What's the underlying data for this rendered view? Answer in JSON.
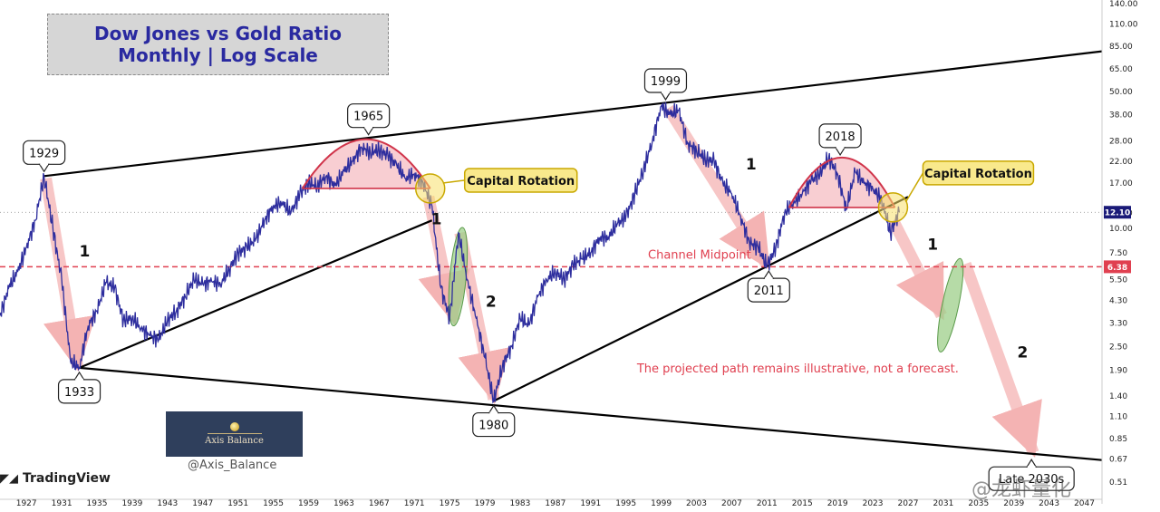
{
  "title_lines": [
    "Dow Jones vs Gold Ratio",
    "Monthly | Log Scale"
  ],
  "branding": {
    "logo_text": "Axis Balance",
    "handle": "@Axis_Balance",
    "platform": "TradingView",
    "watermark": "@龙虾量化"
  },
  "colors": {
    "series": "#2e2e9e",
    "arrow": "#f4b3b3",
    "dome": "#f2a5ad",
    "dome_edge": "#d0344a",
    "green": "#9ecf8a",
    "yellow": "#f7e06a",
    "midline": "#e04050",
    "last_price_bg": "#1a1a78",
    "midline_bg": "#e04050"
  },
  "chart_data": {
    "type": "line",
    "scale": "log",
    "title": "Dow Jones vs Gold Ratio — Monthly | Log Scale",
    "xlim": [
      1924,
      2049
    ],
    "ylim": [
      0.43,
      140
    ],
    "x_ticks": [
      "1927",
      "1931",
      "1935",
      "1939",
      "1943",
      "1947",
      "1951",
      "1955",
      "1959",
      "1963",
      "1967",
      "1971",
      "1975",
      "1979",
      "1983",
      "1987",
      "1991",
      "1995",
      "1999",
      "2003",
      "2007",
      "2011",
      "2015",
      "2019",
      "2023",
      "2027",
      "2031",
      "2035",
      "2039",
      "2043",
      "2047"
    ],
    "y_ticks": [
      "140.00",
      "110.00",
      "85.00",
      "65.00",
      "50.00",
      "38.00",
      "28.00",
      "22.00",
      "17.00",
      "12.00",
      "10.00",
      "7.50",
      "5.50",
      "4.30",
      "3.30",
      "2.50",
      "1.90",
      "1.40",
      "1.10",
      "0.85",
      "0.67",
      "0.51"
    ],
    "last_price": {
      "label": "12.10",
      "value": 12.1
    },
    "channel_midpoint": {
      "label": "6.38",
      "value": 6.38,
      "text": "Channel Midpoint"
    },
    "series": [
      {
        "points": [
          [
            1924,
            3.6
          ],
          [
            1925,
            5.0
          ],
          [
            1926,
            6.0
          ],
          [
            1927,
            8.0
          ],
          [
            1928,
            11.0
          ],
          [
            1929,
            18.5
          ],
          [
            1930,
            10.0
          ],
          [
            1931,
            5.5
          ],
          [
            1932,
            2.1
          ],
          [
            1933,
            1.95
          ],
          [
            1934,
            3.2
          ],
          [
            1935,
            3.8
          ],
          [
            1936,
            5.3
          ],
          [
            1937,
            5.0
          ],
          [
            1938,
            3.4
          ],
          [
            1939,
            3.5
          ],
          [
            1940,
            3.1
          ],
          [
            1941,
            2.85
          ],
          [
            1942,
            2.7
          ],
          [
            1943,
            3.4
          ],
          [
            1944,
            3.8
          ],
          [
            1945,
            4.5
          ],
          [
            1946,
            5.5
          ],
          [
            1947,
            5.2
          ],
          [
            1948,
            5.4
          ],
          [
            1949,
            5.2
          ],
          [
            1950,
            6.2
          ],
          [
            1951,
            7.5
          ],
          [
            1952,
            8.0
          ],
          [
            1953,
            8.8
          ],
          [
            1954,
            11.0
          ],
          [
            1955,
            13.0
          ],
          [
            1956,
            13.5
          ],
          [
            1957,
            12.0
          ],
          [
            1958,
            15.0
          ],
          [
            1959,
            17.0
          ],
          [
            1960,
            16.5
          ],
          [
            1961,
            18.5
          ],
          [
            1962,
            16.5
          ],
          [
            1963,
            19.5
          ],
          [
            1964,
            22.0
          ],
          [
            1965,
            26.0
          ],
          [
            1966,
            24.5
          ],
          [
            1967,
            25.0
          ],
          [
            1968,
            23.5
          ],
          [
            1969,
            21.0
          ],
          [
            1970,
            18.0
          ],
          [
            1971,
            19.0
          ],
          [
            1972,
            17.0
          ],
          [
            1973,
            13.0
          ],
          [
            1974,
            5.0
          ],
          [
            1975,
            3.5
          ],
          [
            1976,
            9.5
          ],
          [
            1977,
            5.5
          ],
          [
            1978,
            3.5
          ],
          [
            1979,
            2.2
          ],
          [
            1980,
            1.32
          ],
          [
            1981,
            2.0
          ],
          [
            1982,
            2.5
          ],
          [
            1983,
            3.5
          ],
          [
            1984,
            3.2
          ],
          [
            1985,
            4.5
          ],
          [
            1986,
            5.5
          ],
          [
            1987,
            6.0
          ],
          [
            1988,
            5.5
          ],
          [
            1989,
            6.5
          ],
          [
            1990,
            7.0
          ],
          [
            1991,
            7.5
          ],
          [
            1992,
            9.0
          ],
          [
            1993,
            9.0
          ],
          [
            1994,
            10.5
          ],
          [
            1995,
            11.5
          ],
          [
            1996,
            15.0
          ],
          [
            1997,
            20.0
          ],
          [
            1998,
            28.0
          ],
          [
            1999,
            42.0
          ],
          [
            2000,
            38.0
          ],
          [
            2001,
            40.0
          ],
          [
            2002,
            27.0
          ],
          [
            2003,
            25.0
          ],
          [
            2004,
            22.5
          ],
          [
            2005,
            22.0
          ],
          [
            2006,
            17.0
          ],
          [
            2007,
            15.0
          ],
          [
            2008,
            11.5
          ],
          [
            2009,
            8.5
          ],
          [
            2010,
            8.0
          ],
          [
            2011,
            6.4
          ],
          [
            2012,
            8.0
          ],
          [
            2013,
            12.0
          ],
          [
            2014,
            13.5
          ],
          [
            2015,
            15.0
          ],
          [
            2016,
            17.5
          ],
          [
            2017,
            19.0
          ],
          [
            2018,
            23.0
          ],
          [
            2019,
            19.0
          ],
          [
            2020,
            12.5
          ],
          [
            2021,
            19.5
          ],
          [
            2022,
            17.0
          ],
          [
            2023,
            16.0
          ],
          [
            2024,
            14.0
          ],
          [
            2025,
            9.5
          ],
          [
            2026,
            12.1
          ]
        ]
      }
    ],
    "channel_lines": [
      {
        "name": "upper",
        "from": [
          1929,
          18.5
        ],
        "to": [
          2049,
          80
        ]
      },
      {
        "name": "lower",
        "from": [
          1933,
          1.95
        ],
        "to": [
          2049,
          0.66
        ]
      },
      {
        "name": "support-1",
        "from": [
          1933,
          1.95
        ],
        "to": [
          1973,
          11.0
        ]
      },
      {
        "name": "support-2",
        "from": [
          1980,
          1.32
        ],
        "to": [
          2027,
          14.5
        ]
      }
    ],
    "domes": [
      {
        "label": "1965",
        "x_start": 1958.3,
        "x_end": 1972.8,
        "base": 16.0,
        "peak": 28.5
      },
      {
        "label": "2018",
        "x_start": 2013.5,
        "x_end": 2025.5,
        "base": 12.8,
        "peak": 23.0
      }
    ],
    "callouts": [
      {
        "label": "1929",
        "x": 1929,
        "y": 18.5,
        "pos": "above"
      },
      {
        "label": "1933",
        "x": 1933,
        "y": 1.95,
        "pos": "below"
      },
      {
        "label": "1965",
        "x": 1965.8,
        "y": 28.5,
        "pos": "above"
      },
      {
        "label": "1980",
        "x": 1980,
        "y": 1.32,
        "pos": "below"
      },
      {
        "label": "1999",
        "x": 1999.5,
        "y": 43,
        "pos": "above"
      },
      {
        "label": "2011",
        "x": 2011.2,
        "y": 6.4,
        "pos": "below"
      },
      {
        "label": "2018",
        "x": 2019.3,
        "y": 22.5,
        "pos": "above"
      },
      {
        "label": "Late 2030s",
        "x": 2041.0,
        "y": 0.7,
        "pos": "below"
      }
    ],
    "capital_rotation": [
      {
        "label": "Capital Rotation",
        "x": 1972.8,
        "y": 16.0
      },
      {
        "label": "Capital Rotation",
        "x": 2025.3,
        "y": 12.8
      }
    ],
    "wave_labels": [
      {
        "label": "1",
        "x": 1933.6,
        "y": 7.2
      },
      {
        "label": "1",
        "x": 1973.5,
        "y": 10.5
      },
      {
        "label": "2",
        "x": 1979.7,
        "y": 4.0
      },
      {
        "label": "1",
        "x": 2009.2,
        "y": 20.0
      },
      {
        "label": "1",
        "x": 2029.8,
        "y": 7.8
      },
      {
        "label": "2",
        "x": 2040.0,
        "y": 2.2
      }
    ],
    "decline_arrows": [
      {
        "from": [
          1929.2,
          18.0
        ],
        "to": [
          1932.8,
          1.98
        ]
      },
      {
        "from": [
          1972.6,
          14.5
        ],
        "to": [
          1975.5,
          3.4
        ]
      },
      {
        "from": [
          1976.2,
          9.5
        ],
        "to": [
          1980.0,
          1.35
        ]
      },
      {
        "from": [
          1999.8,
          41.0
        ],
        "to": [
          2011.0,
          6.5
        ]
      },
      {
        "from": [
          2025.3,
          11.0
        ],
        "to": [
          2030.8,
          3.6
        ]
      },
      {
        "from": [
          2033.5,
          6.6
        ],
        "to": [
          2041.2,
          0.72
        ]
      }
    ],
    "green_ovals": [
      {
        "from": [
          1975.5,
          3.4
        ],
        "to": [
          1976.4,
          9.5
        ]
      },
      {
        "from": [
          2030.8,
          2.5
        ],
        "to": [
          2032.8,
          6.6
        ]
      }
    ],
    "note": "The projected path remains illustrative, not a forecast."
  }
}
